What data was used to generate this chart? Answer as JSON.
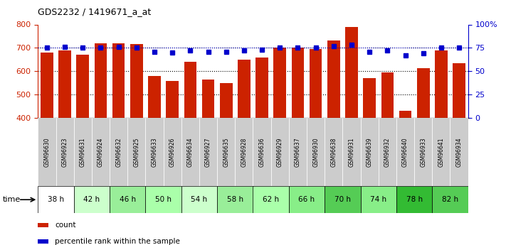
{
  "title": "GDS2232 / 1419671_a_at",
  "samples": [
    "GSM96630",
    "GSM96923",
    "GSM96631",
    "GSM96924",
    "GSM96632",
    "GSM96925",
    "GSM96633",
    "GSM96926",
    "GSM96634",
    "GSM96927",
    "GSM96635",
    "GSM96928",
    "GSM96636",
    "GSM96929",
    "GSM96637",
    "GSM96930",
    "GSM96638",
    "GSM96931",
    "GSM96639",
    "GSM96932",
    "GSM96640",
    "GSM96933",
    "GSM96641",
    "GSM96934"
  ],
  "counts": [
    680,
    690,
    670,
    720,
    720,
    715,
    578,
    558,
    640,
    565,
    548,
    650,
    658,
    700,
    700,
    695,
    732,
    790,
    570,
    595,
    430,
    613,
    690,
    633
  ],
  "percentiles": [
    75,
    76,
    75,
    75,
    76,
    75,
    71,
    70,
    72,
    71,
    71,
    72,
    73,
    75,
    75,
    75,
    77,
    78,
    71,
    72,
    67,
    69,
    75,
    75
  ],
  "time_groups": [
    {
      "label": "38 h",
      "start": 0,
      "end": 1,
      "color": "#ffffff"
    },
    {
      "label": "42 h",
      "start": 2,
      "end": 3,
      "color": "#ccffcc"
    },
    {
      "label": "46 h",
      "start": 4,
      "end": 5,
      "color": "#99ee99"
    },
    {
      "label": "50 h",
      "start": 6,
      "end": 7,
      "color": "#aaffaa"
    },
    {
      "label": "54 h",
      "start": 8,
      "end": 9,
      "color": "#ccffcc"
    },
    {
      "label": "58 h",
      "start": 10,
      "end": 11,
      "color": "#99ee99"
    },
    {
      "label": "62 h",
      "start": 12,
      "end": 13,
      "color": "#aaffaa"
    },
    {
      "label": "66 h",
      "start": 14,
      "end": 15,
      "color": "#88ee88"
    },
    {
      "label": "70 h",
      "start": 16,
      "end": 17,
      "color": "#55cc55"
    },
    {
      "label": "74 h",
      "start": 18,
      "end": 19,
      "color": "#88ee88"
    },
    {
      "label": "78 h",
      "start": 20,
      "end": 21,
      "color": "#33bb33"
    },
    {
      "label": "82 h",
      "start": 22,
      "end": 23,
      "color": "#55cc55"
    }
  ],
  "sample_bg_color": "#cccccc",
  "bar_color": "#cc2200",
  "dot_color": "#0000cc",
  "ylim_left": [
    400,
    800
  ],
  "yticks_left": [
    400,
    500,
    600,
    700,
    800
  ],
  "ylim_right": [
    0,
    100
  ],
  "yticks_right": [
    0,
    25,
    50,
    75,
    100
  ],
  "yticklabels_right": [
    "0",
    "25",
    "50",
    "75",
    "100%"
  ],
  "grid_values": [
    500,
    600,
    700
  ],
  "bar_width": 0.7,
  "legend_items": [
    {
      "color": "#cc2200",
      "label": "count"
    },
    {
      "color": "#0000cc",
      "label": "percentile rank within the sample"
    }
  ]
}
